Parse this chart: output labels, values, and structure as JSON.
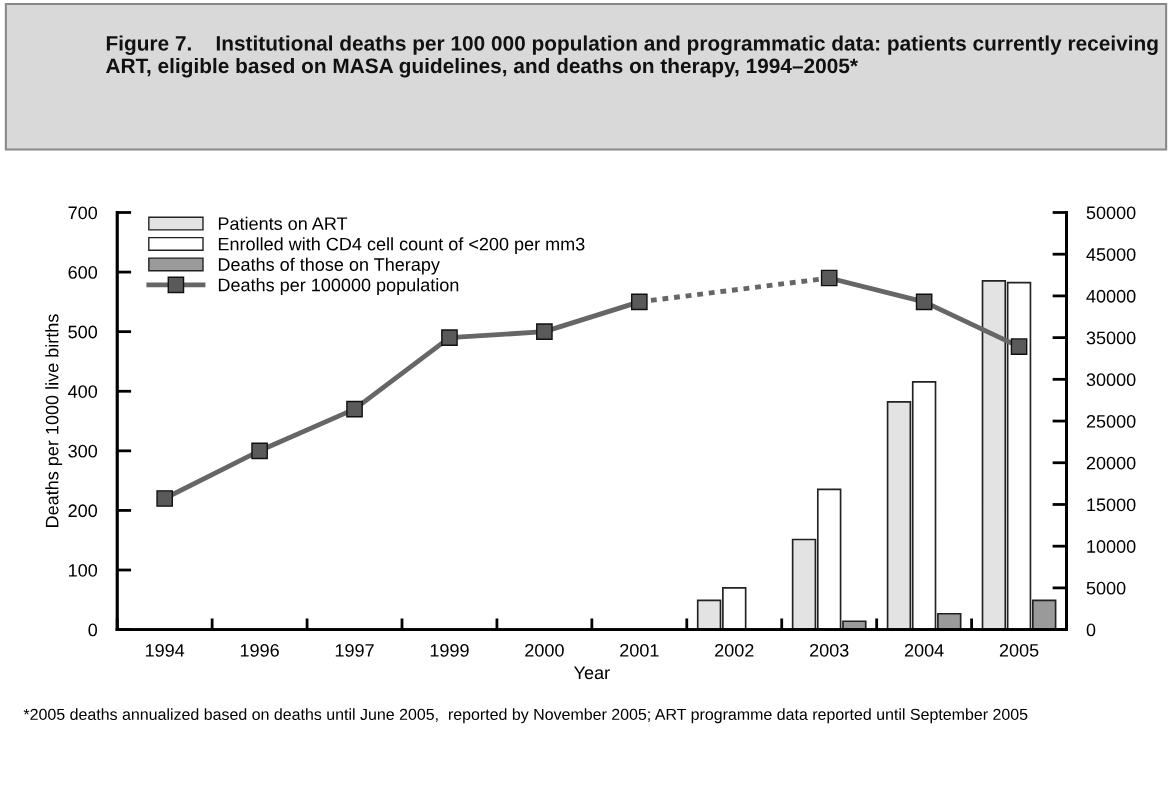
{
  "chart_data": {
    "type": "bar",
    "title": "Figure 7.    Institutional deaths per 100 000 population and programmatic data: patients currently receiving ART, eligible based on MASA guidelines, and deaths on therapy, 1994–2005*",
    "xlabel": "Year",
    "ylabel": "Deaths per 1000 live births",
    "categories": [
      "1994",
      "1996",
      "1997",
      "1999",
      "2000",
      "2001",
      "2002",
      "2003",
      "2004",
      "2005"
    ],
    "series": [
      {
        "name": "Patients on ART",
        "axis": "y2",
        "color": "#e2e3e2",
        "values": [
          null,
          null,
          null,
          null,
          null,
          null,
          3500,
          10800,
          27300,
          41800
        ]
      },
      {
        "name": "Enrolled with CD4 cell count of <200 per mm3",
        "axis": "y2",
        "color": "#ffffff",
        "values": [
          null,
          null,
          null,
          null,
          null,
          null,
          5000,
          16800,
          29700,
          41600
        ]
      },
      {
        "name": "Deaths of those on Therapy",
        "axis": "y2",
        "color": "#9a9a9a",
        "values": [
          null,
          null,
          null,
          null,
          null,
          null,
          0,
          1000,
          1900,
          3500
        ]
      },
      {
        "name": "Deaths per 100000 population",
        "type": "line",
        "axis": "y",
        "color": "#666666",
        "marker": "square",
        "line_style": "solid",
        "values": [
          220,
          300,
          370,
          490,
          500,
          550,
          null,
          590,
          550,
          475
        ]
      }
    ],
    "ylim": [
      0,
      700
    ],
    "yticks": [
      0,
      100,
      200,
      300,
      400,
      500,
      600,
      700
    ],
    "y2lim": [
      0,
      50000
    ],
    "y2ticks": [
      0,
      5000,
      10000,
      15000,
      20000,
      25000,
      30000,
      35000,
      40000,
      45000,
      50000
    ],
    "legend": "top left",
    "grid": false,
    "annotations": [
      "*2005 deaths annualized based on deaths until June 2005,  reported by November 2005; ART programme data reported until September 2005"
    ]
  }
}
